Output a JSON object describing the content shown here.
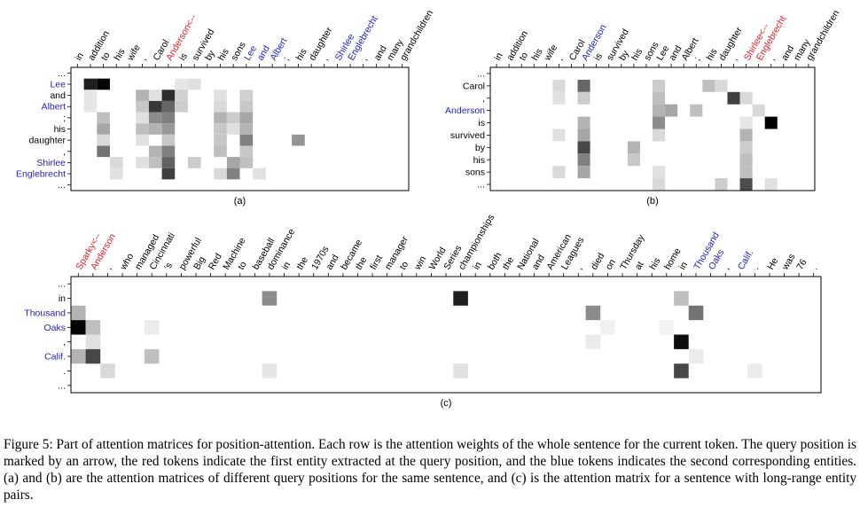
{
  "colors": {
    "query_red": "#e8202a",
    "entity_blue": "#2424c8",
    "plain": "#000000"
  },
  "panels": [
    {
      "id": "a",
      "label": "(a)",
      "columns": [
        {
          "t": "in"
        },
        {
          "t": "addition"
        },
        {
          "t": "to"
        },
        {
          "t": "his"
        },
        {
          "t": "wife"
        },
        {
          "t": ","
        },
        {
          "t": "Carol"
        },
        {
          "t": "Anderson<--",
          "c": "red"
        },
        {
          "t": "is"
        },
        {
          "t": "survived"
        },
        {
          "t": "by"
        },
        {
          "t": "his"
        },
        {
          "t": "sons"
        },
        {
          "t": "Lee",
          "c": "blue"
        },
        {
          "t": "and",
          "c": "blue"
        },
        {
          "t": "Albert",
          "c": "blue"
        },
        {
          "t": ";"
        },
        {
          "t": "his"
        },
        {
          "t": "daughter"
        },
        {
          "t": ","
        },
        {
          "t": "Shirlee",
          "c": "blue"
        },
        {
          "t": "Englebrecht",
          "c": "blue"
        },
        {
          "t": ","
        },
        {
          "t": "and"
        },
        {
          "t": "many"
        },
        {
          "t": "grandchildren"
        }
      ],
      "rows": [
        {
          "t": "..."
        },
        {
          "t": "Lee",
          "c": "blue"
        },
        {
          "t": "and"
        },
        {
          "t": "Albert",
          "c": "blue"
        },
        {
          "t": ";"
        },
        {
          "t": "his"
        },
        {
          "t": "daughter"
        },
        {
          "t": ","
        },
        {
          "t": "Shirlee",
          "c": "blue"
        },
        {
          "t": "Englebrecht",
          "c": "blue"
        },
        {
          "t": "..."
        }
      ],
      "cells": [
        [
          1,
          1,
          0.88
        ],
        [
          1,
          2,
          0.98
        ],
        [
          1,
          8,
          0.1
        ],
        [
          1,
          9,
          0.12
        ],
        [
          2,
          1,
          0.1
        ],
        [
          2,
          5,
          0.3
        ],
        [
          2,
          6,
          0.12
        ],
        [
          2,
          7,
          0.82
        ],
        [
          2,
          8,
          0.18
        ],
        [
          2,
          11,
          0.12
        ],
        [
          2,
          13,
          0.18
        ],
        [
          3,
          1,
          0.1
        ],
        [
          3,
          5,
          0.22
        ],
        [
          3,
          6,
          0.78
        ],
        [
          3,
          7,
          0.6
        ],
        [
          3,
          8,
          0.2
        ],
        [
          3,
          11,
          0.15
        ],
        [
          3,
          13,
          0.22
        ],
        [
          4,
          2,
          0.25
        ],
        [
          4,
          5,
          0.12
        ],
        [
          4,
          6,
          0.45
        ],
        [
          4,
          7,
          0.5
        ],
        [
          4,
          11,
          0.3
        ],
        [
          4,
          12,
          0.2
        ],
        [
          4,
          13,
          0.35
        ],
        [
          5,
          2,
          0.35
        ],
        [
          5,
          5,
          0.25
        ],
        [
          5,
          6,
          0.3
        ],
        [
          5,
          7,
          0.4
        ],
        [
          5,
          11,
          0.22
        ],
        [
          5,
          12,
          0.12
        ],
        [
          5,
          13,
          0.3
        ],
        [
          6,
          2,
          0.15
        ],
        [
          6,
          5,
          0.12
        ],
        [
          6,
          7,
          0.22
        ],
        [
          6,
          11,
          0.22
        ],
        [
          6,
          13,
          0.5
        ],
        [
          6,
          17,
          0.42
        ],
        [
          7,
          2,
          0.55
        ],
        [
          7,
          6,
          0.3
        ],
        [
          7,
          7,
          0.5
        ],
        [
          7,
          11,
          0.25
        ],
        [
          7,
          13,
          0.22
        ],
        [
          8,
          3,
          0.15
        ],
        [
          8,
          5,
          0.12
        ],
        [
          8,
          6,
          0.25
        ],
        [
          8,
          7,
          0.62
        ],
        [
          8,
          9,
          0.2
        ],
        [
          8,
          12,
          0.35
        ],
        [
          8,
          13,
          0.25
        ],
        [
          9,
          3,
          0.12
        ],
        [
          9,
          7,
          0.75
        ],
        [
          9,
          11,
          0.15
        ],
        [
          9,
          12,
          0.5
        ],
        [
          9,
          14,
          0.12
        ]
      ]
    },
    {
      "id": "b",
      "label": "(b)",
      "columns": [
        {
          "t": "in"
        },
        {
          "t": "addition"
        },
        {
          "t": "to"
        },
        {
          "t": "his"
        },
        {
          "t": "wife"
        },
        {
          "t": ","
        },
        {
          "t": "Carol"
        },
        {
          "t": "Anderson",
          "c": "blue"
        },
        {
          "t": "is"
        },
        {
          "t": "survived"
        },
        {
          "t": "by"
        },
        {
          "t": "his"
        },
        {
          "t": "sons"
        },
        {
          "t": "Lee"
        },
        {
          "t": "and"
        },
        {
          "t": "Albert"
        },
        {
          "t": ";"
        },
        {
          "t": "his"
        },
        {
          "t": "daughter"
        },
        {
          "t": ","
        },
        {
          "t": "Shirlee<--",
          "c": "red"
        },
        {
          "t": "Englebrecht",
          "c": "red"
        },
        {
          "t": ","
        },
        {
          "t": "and"
        },
        {
          "t": "many"
        },
        {
          "t": "grandchildren"
        }
      ],
      "rows": [
        {
          "t": "..."
        },
        {
          "t": "Carol"
        },
        {
          "t": ","
        },
        {
          "t": "Anderson",
          "c": "blue"
        },
        {
          "t": "is"
        },
        {
          "t": "survived"
        },
        {
          "t": "by"
        },
        {
          "t": "his"
        },
        {
          "t": "sons"
        },
        {
          "t": "..."
        }
      ],
      "cells": [
        [
          1,
          5,
          0.15
        ],
        [
          1,
          7,
          0.6
        ],
        [
          1,
          13,
          0.2
        ],
        [
          1,
          17,
          0.25
        ],
        [
          1,
          18,
          0.15
        ],
        [
          2,
          5,
          0.12
        ],
        [
          2,
          7,
          0.2
        ],
        [
          2,
          13,
          0.25
        ],
        [
          2,
          19,
          0.75
        ],
        [
          2,
          20,
          0.15
        ],
        [
          3,
          13,
          0.3
        ],
        [
          3,
          14,
          0.35
        ],
        [
          3,
          16,
          0.25
        ],
        [
          3,
          21,
          0.15
        ],
        [
          4,
          7,
          0.3
        ],
        [
          4,
          13,
          0.45
        ],
        [
          4,
          20,
          0.1
        ],
        [
          4,
          22,
          1.0
        ],
        [
          5,
          5,
          0.12
        ],
        [
          5,
          7,
          0.35
        ],
        [
          5,
          13,
          0.15
        ],
        [
          5,
          20,
          0.3
        ],
        [
          6,
          7,
          0.72
        ],
        [
          6,
          11,
          0.3
        ],
        [
          6,
          20,
          0.2
        ],
        [
          7,
          7,
          0.5
        ],
        [
          7,
          11,
          0.22
        ],
        [
          7,
          20,
          0.25
        ],
        [
          8,
          5,
          0.15
        ],
        [
          8,
          7,
          0.35
        ],
        [
          8,
          13,
          0.12
        ],
        [
          8,
          20,
          0.25
        ],
        [
          9,
          13,
          0.15
        ],
        [
          9,
          18,
          0.2
        ],
        [
          9,
          20,
          0.7
        ],
        [
          9,
          22,
          0.12
        ]
      ]
    },
    {
      "id": "c",
      "label": "(c)",
      "columns": [
        {
          "t": "Sparky<--",
          "c": "red"
        },
        {
          "t": "Anderson",
          "c": "red"
        },
        {
          "t": ","
        },
        {
          "t": "who"
        },
        {
          "t": "managed"
        },
        {
          "t": "Cincinnati"
        },
        {
          "t": "'s"
        },
        {
          "t": "powerful"
        },
        {
          "t": "Big"
        },
        {
          "t": "Red"
        },
        {
          "t": "Machine"
        },
        {
          "t": "to"
        },
        {
          "t": "baseball"
        },
        {
          "t": "dominance"
        },
        {
          "t": "in"
        },
        {
          "t": "the"
        },
        {
          "t": "1970s"
        },
        {
          "t": "and"
        },
        {
          "t": "became"
        },
        {
          "t": "the"
        },
        {
          "t": "first"
        },
        {
          "t": "manager"
        },
        {
          "t": "to"
        },
        {
          "t": "win"
        },
        {
          "t": "World"
        },
        {
          "t": "Series"
        },
        {
          "t": "championships"
        },
        {
          "t": "in"
        },
        {
          "t": "both"
        },
        {
          "t": "the"
        },
        {
          "t": "National"
        },
        {
          "t": "and"
        },
        {
          "t": "American"
        },
        {
          "t": "Leagues"
        },
        {
          "t": ","
        },
        {
          "t": "died"
        },
        {
          "t": "on"
        },
        {
          "t": "Thursday"
        },
        {
          "t": "at"
        },
        {
          "t": "his"
        },
        {
          "t": "home"
        },
        {
          "t": "in"
        },
        {
          "t": "Thousand",
          "c": "blue"
        },
        {
          "t": "Oaks",
          "c": "blue"
        },
        {
          "t": ","
        },
        {
          "t": "Calif.",
          "c": "blue"
        },
        {
          "t": "."
        },
        {
          "t": "He"
        },
        {
          "t": "was"
        },
        {
          "t": "76"
        },
        {
          "t": "."
        }
      ],
      "rows": [
        {
          "t": "..."
        },
        {
          "t": "in"
        },
        {
          "t": "Thousand",
          "c": "blue"
        },
        {
          "t": "Oaks",
          "c": "blue"
        },
        {
          "t": ","
        },
        {
          "t": "Calif.",
          "c": "blue"
        },
        {
          "t": "."
        },
        {
          "t": "..."
        }
      ],
      "cells": [
        [
          1,
          13,
          0.45
        ],
        [
          1,
          26,
          0.88
        ],
        [
          1,
          41,
          0.25
        ],
        [
          2,
          0,
          0.3
        ],
        [
          2,
          35,
          0.45
        ],
        [
          2,
          42,
          0.55
        ],
        [
          3,
          0,
          0.98
        ],
        [
          3,
          1,
          0.25
        ],
        [
          3,
          5,
          0.08
        ],
        [
          3,
          36,
          0.06
        ],
        [
          3,
          40,
          0.05
        ],
        [
          4,
          1,
          0.12
        ],
        [
          4,
          35,
          0.08
        ],
        [
          4,
          41,
          0.95
        ],
        [
          5,
          0,
          0.3
        ],
        [
          5,
          1,
          0.72
        ],
        [
          5,
          5,
          0.25
        ],
        [
          5,
          42,
          0.08
        ],
        [
          6,
          2,
          0.15
        ],
        [
          6,
          13,
          0.1
        ],
        [
          6,
          26,
          0.12
        ],
        [
          6,
          41,
          0.72
        ],
        [
          6,
          46,
          0.08
        ]
      ]
    }
  ],
  "caption": {
    "text": "Figure 5: Part of attention matrices for position-attention. Each row is the attention weights of the whole sentence for the current token. The query position is marked by an arrow, the red tokens indicate the first entity extracted at the query position, and the blue tokens indicates the second corresponding entities. (a) and (b) are the attention matrices of different query positions for the same sentence, and (c) is the attention matrix for a sentence with long-range entity pairs."
  }
}
